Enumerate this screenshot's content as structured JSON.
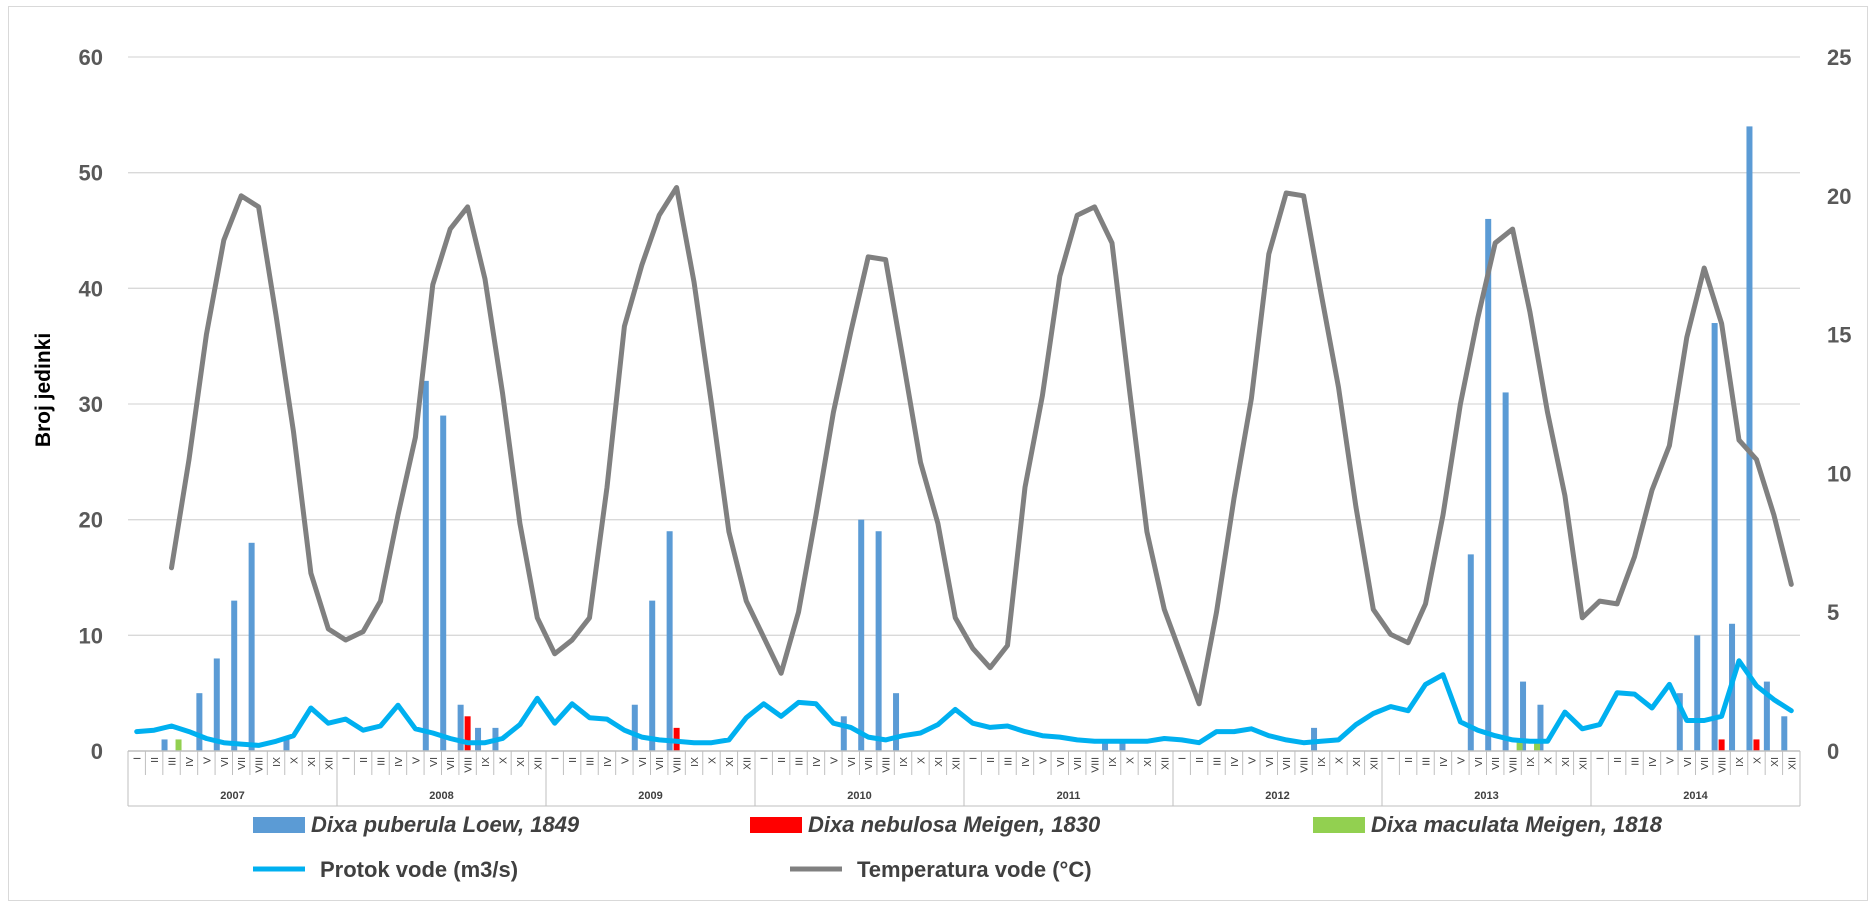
{
  "chart_data": {
    "type": "bar",
    "ylabel": "Broj jedinki",
    "ylim": [
      0,
      60
    ],
    "y_ticks": [
      "0",
      "10",
      "20",
      "30",
      "40",
      "50",
      "60"
    ],
    "y2lim": [
      0,
      25
    ],
    "y2_ticks": [
      "0",
      "5",
      "10",
      "15",
      "20",
      "25"
    ],
    "grid": true,
    "legend_position": "bottom",
    "years": [
      "2007",
      "2008",
      "2009",
      "2010",
      "2011",
      "2012",
      "2013",
      "2014"
    ],
    "months": [
      "I",
      "II",
      "III",
      "IV",
      "V",
      "VI",
      "VII",
      "VIII",
      "IX",
      "X",
      "XI",
      "XII"
    ],
    "bar_series": [
      {
        "name": "Dixa puberula Loew, 1849",
        "color": "#5b9bd5",
        "values": [
          0,
          0,
          1,
          0,
          5,
          8,
          13,
          18,
          0,
          1,
          0,
          0,
          0,
          0,
          0,
          0,
          0,
          32,
          29,
          4,
          2,
          2,
          0,
          0,
          0,
          0,
          0,
          0,
          0,
          4,
          13,
          19,
          0,
          0,
          0,
          0,
          0,
          0,
          0,
          0,
          0,
          3,
          20,
          19,
          5,
          0,
          0,
          0,
          0,
          0,
          0,
          0,
          0,
          0,
          0,
          0,
          1,
          1,
          0,
          0,
          0,
          0,
          0,
          0,
          0,
          0,
          0,
          0,
          2,
          0,
          0,
          0,
          0,
          0,
          0,
          0,
          0,
          17,
          46,
          31,
          6,
          4,
          0,
          0,
          0,
          0,
          0,
          0,
          0,
          5,
          10,
          37,
          11,
          54,
          6,
          3
        ]
      },
      {
        "name": "Dixa nebulosa Meigen, 1830",
        "color": "#ff0000",
        "values": [
          0,
          0,
          0,
          0,
          0,
          0,
          0,
          0,
          0,
          0,
          0,
          0,
          0,
          0,
          0,
          0,
          0,
          0,
          0,
          3,
          0,
          0,
          0,
          0,
          0,
          0,
          0,
          0,
          0,
          0,
          0,
          2,
          0,
          0,
          0,
          0,
          0,
          0,
          0,
          0,
          0,
          0,
          0,
          0,
          0,
          0,
          0,
          0,
          0,
          0,
          0,
          0,
          0,
          0,
          0,
          0,
          0,
          0,
          0,
          0,
          0,
          0,
          0,
          0,
          0,
          0,
          0,
          0,
          0,
          0,
          0,
          0,
          0,
          0,
          0,
          0,
          0,
          0,
          0,
          0,
          0,
          0,
          0,
          0,
          0,
          0,
          0,
          0,
          0,
          0,
          0,
          1,
          0,
          1,
          0,
          0
        ]
      },
      {
        "name": "Dixa maculata Meigen, 1818",
        "color": "#92d050",
        "values": [
          0,
          0,
          1,
          0,
          0,
          0,
          0,
          0,
          0,
          0,
          0,
          0,
          0,
          0,
          0,
          0,
          0,
          0,
          0,
          0,
          0,
          0,
          0,
          0,
          0,
          0,
          0,
          0,
          0,
          0,
          0,
          0,
          0,
          0,
          0,
          0,
          0,
          0,
          0,
          0,
          0,
          0,
          0,
          0,
          0,
          0,
          0,
          0,
          0,
          0,
          0,
          0,
          0,
          0,
          0,
          0,
          0,
          0,
          0,
          0,
          0,
          0,
          0,
          0,
          0,
          0,
          0,
          0,
          0,
          0,
          0,
          0,
          0,
          0,
          0,
          0,
          0,
          0,
          0,
          1,
          1,
          0,
          0,
          0,
          0,
          0,
          0,
          0,
          0,
          0,
          0,
          0,
          0,
          0,
          0,
          0
        ]
      }
    ],
    "line_series": [
      {
        "name": "Protok vode (m3/s)",
        "axis": "right",
        "color": "#00b0f0",
        "values": [
          0.7,
          0.75,
          0.9,
          0.7,
          0.45,
          0.3,
          0.25,
          0.2,
          0.35,
          0.55,
          1.55,
          1.0,
          1.15,
          0.75,
          0.9,
          1.65,
          0.8,
          0.65,
          0.45,
          0.3,
          0.3,
          0.45,
          0.95,
          1.9,
          1.0,
          1.7,
          1.2,
          1.15,
          0.75,
          0.5,
          0.4,
          0.35,
          0.3,
          0.3,
          0.4,
          1.2,
          1.7,
          1.25,
          1.75,
          1.7,
          1.0,
          0.85,
          0.5,
          0.4,
          0.55,
          0.65,
          0.95,
          1.5,
          1.0,
          0.85,
          0.9,
          0.7,
          0.55,
          0.5,
          0.4,
          0.35,
          0.35,
          0.35,
          0.35,
          0.45,
          0.4,
          0.3,
          0.7,
          0.7,
          0.8,
          0.55,
          0.4,
          0.3,
          0.35,
          0.4,
          0.95,
          1.35,
          1.6,
          1.45,
          2.4,
          2.75,
          1.05,
          0.75,
          0.55,
          0.4,
          0.35,
          0.35,
          1.4,
          0.8,
          0.95,
          2.1,
          2.05,
          1.55,
          2.4,
          1.1,
          1.1,
          1.25,
          3.25,
          2.35,
          1.85,
          1.45
        ]
      },
      {
        "name": "Temperatura vode (°C)",
        "axis": "right",
        "color": "#808080",
        "values": [
          null,
          null,
          6.6,
          10.5,
          15.0,
          18.4,
          20.0,
          19.6,
          15.7,
          11.5,
          6.4,
          4.4,
          4.0,
          4.3,
          5.4,
          8.5,
          11.3,
          16.8,
          18.8,
          19.6,
          17.0,
          12.9,
          8.2,
          4.8,
          3.5,
          4.0,
          4.8,
          9.5,
          15.3,
          17.5,
          19.3,
          20.3,
          16.9,
          12.5,
          7.9,
          5.4,
          4.1,
          2.8,
          5.0,
          8.5,
          12.2,
          15.1,
          17.8,
          17.7,
          14.1,
          10.4,
          8.2,
          4.8,
          3.7,
          3.0,
          3.8,
          9.5,
          12.8,
          17.1,
          19.3,
          19.6,
          18.3,
          13.0,
          7.9,
          5.1,
          3.4,
          1.7,
          5.0,
          9.1,
          12.7,
          17.9,
          20.1,
          20.0,
          16.5,
          13.1,
          8.8,
          5.1,
          4.2,
          3.9,
          5.3,
          8.5,
          12.5,
          15.6,
          18.3,
          18.8,
          15.8,
          12.2,
          9.2,
          4.8,
          5.4,
          5.3,
          7.0,
          9.4,
          11.0,
          14.9,
          17.4,
          15.4,
          11.2,
          10.5,
          8.5,
          6.0
        ]
      }
    ]
  }
}
